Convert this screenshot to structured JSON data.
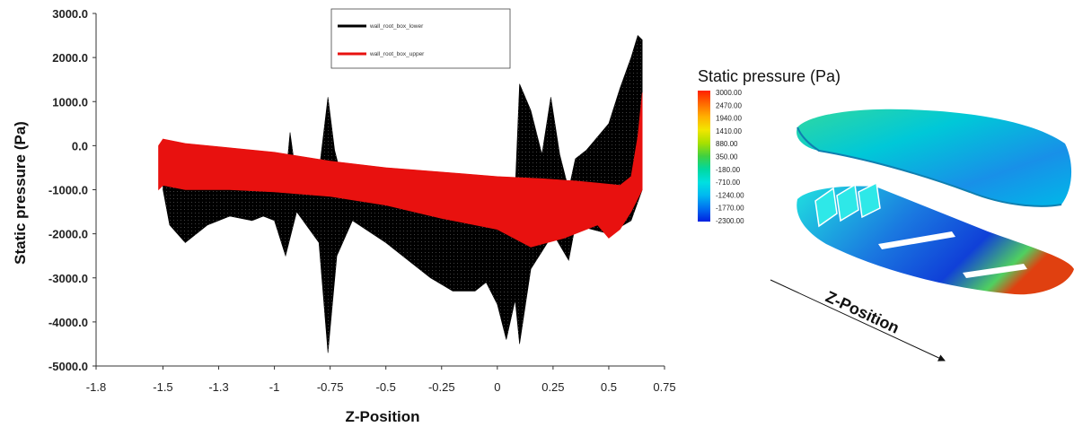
{
  "chart_data": {
    "type": "scatter",
    "xlabel": "Z-Position",
    "ylabel": "Static pressure (Pa)",
    "xlim": [
      -1.8,
      0.75
    ],
    "ylim": [
      -5000,
      3000
    ],
    "x_ticks": [
      "-1.8",
      "-1.5",
      "-1.3",
      "-1",
      "-0.75",
      "-0.5",
      "-0.25",
      "0",
      "0.25",
      "0.5",
      "0.75"
    ],
    "x_tick_values": [
      -1.8,
      -1.5,
      -1.25,
      -1.0,
      -0.75,
      -0.5,
      -0.25,
      0,
      0.25,
      0.5,
      0.75
    ],
    "y_ticks": [
      "3000.0",
      "2000.0",
      "1000.0",
      "0.0",
      "-1000.0",
      "-2000.0",
      "-3000.0",
      "-4000.0",
      "-5000.0"
    ],
    "y_tick_values": [
      3000,
      2000,
      1000,
      0,
      -1000,
      -2000,
      -3000,
      -4000,
      -5000
    ],
    "legend_position": "top-center",
    "series": [
      {
        "name": "wall_root_box_lower",
        "color": "#000000",
        "upper": [
          [
            -1.5,
            -400
          ],
          [
            -1.45,
            -500
          ],
          [
            -1.4,
            -550
          ],
          [
            -1.3,
            -600
          ],
          [
            -1.2,
            -650
          ],
          [
            -1.1,
            -700
          ],
          [
            -1.0,
            -750
          ],
          [
            -0.95,
            -800
          ],
          [
            -0.93,
            300
          ],
          [
            -0.9,
            -800
          ],
          [
            -0.8,
            -600
          ],
          [
            -0.76,
            1100
          ],
          [
            -0.73,
            -100
          ],
          [
            -0.7,
            -700
          ],
          [
            -0.6,
            -700
          ],
          [
            -0.5,
            -800
          ],
          [
            -0.4,
            -850
          ],
          [
            -0.3,
            -900
          ],
          [
            -0.2,
            -950
          ],
          [
            -0.1,
            -1000
          ],
          [
            0.0,
            -1050
          ],
          [
            0.08,
            -1000
          ],
          [
            0.1,
            1400
          ],
          [
            0.15,
            800
          ],
          [
            0.2,
            -200
          ],
          [
            0.24,
            1100
          ],
          [
            0.28,
            -200
          ],
          [
            0.32,
            -1000
          ],
          [
            0.35,
            -300
          ],
          [
            0.4,
            -100
          ],
          [
            0.5,
            500
          ],
          [
            0.55,
            1300
          ],
          [
            0.6,
            2000
          ],
          [
            0.63,
            2500
          ],
          [
            0.65,
            2400
          ]
        ],
        "lower": [
          [
            -1.5,
            -1000
          ],
          [
            -1.47,
            -1800
          ],
          [
            -1.4,
            -2200
          ],
          [
            -1.35,
            -2000
          ],
          [
            -1.3,
            -1800
          ],
          [
            -1.2,
            -1600
          ],
          [
            -1.1,
            -1700
          ],
          [
            -1.05,
            -1600
          ],
          [
            -1.0,
            -1700
          ],
          [
            -0.95,
            -2500
          ],
          [
            -0.9,
            -1500
          ],
          [
            -0.8,
            -2200
          ],
          [
            -0.76,
            -4700
          ],
          [
            -0.72,
            -2500
          ],
          [
            -0.65,
            -1700
          ],
          [
            -0.5,
            -2200
          ],
          [
            -0.4,
            -2600
          ],
          [
            -0.3,
            -3000
          ],
          [
            -0.2,
            -3300
          ],
          [
            -0.1,
            -3300
          ],
          [
            -0.05,
            -3100
          ],
          [
            0.0,
            -3600
          ],
          [
            0.04,
            -4400
          ],
          [
            0.08,
            -3500
          ],
          [
            0.1,
            -4500
          ],
          [
            0.15,
            -2800
          ],
          [
            0.2,
            -2400
          ],
          [
            0.25,
            -2000
          ],
          [
            0.32,
            -2600
          ],
          [
            0.35,
            -1800
          ],
          [
            0.5,
            -2000
          ],
          [
            0.6,
            -1700
          ],
          [
            0.65,
            -1000
          ]
        ]
      },
      {
        "name": "wall_root_box_upper",
        "color": "#e8110f",
        "upper": [
          [
            -1.52,
            0
          ],
          [
            -1.5,
            150
          ],
          [
            -1.4,
            50
          ],
          [
            -1.2,
            -50
          ],
          [
            -1.0,
            -150
          ],
          [
            -0.75,
            -350
          ],
          [
            -0.5,
            -500
          ],
          [
            -0.25,
            -600
          ],
          [
            0.0,
            -700
          ],
          [
            0.2,
            -750
          ],
          [
            0.35,
            -800
          ],
          [
            0.45,
            -850
          ],
          [
            0.55,
            -900
          ],
          [
            0.6,
            -700
          ],
          [
            0.63,
            200
          ],
          [
            0.65,
            1200
          ]
        ],
        "lower": [
          [
            -1.52,
            -1000
          ],
          [
            -1.5,
            -900
          ],
          [
            -1.4,
            -1000
          ],
          [
            -1.2,
            -1000
          ],
          [
            -1.0,
            -1050
          ],
          [
            -0.75,
            -1150
          ],
          [
            -0.5,
            -1350
          ],
          [
            -0.25,
            -1650
          ],
          [
            0.0,
            -1900
          ],
          [
            0.15,
            -2300
          ],
          [
            0.3,
            -2100
          ],
          [
            0.45,
            -1800
          ],
          [
            0.5,
            -2100
          ],
          [
            0.55,
            -1900
          ],
          [
            0.6,
            -1500
          ],
          [
            0.65,
            -1000
          ]
        ]
      }
    ]
  },
  "colorbar": {
    "title": "Static pressure (Pa)",
    "ticks": [
      "3000.00",
      "2470.00",
      "1940.00",
      "1410.00",
      "880.00",
      "350.00",
      "-180.00",
      "-710.00",
      "-1240.00",
      "-1770.00",
      "-2300.00"
    ],
    "colors": [
      "#ff2000",
      "#ff6a00",
      "#ffb000",
      "#f2e600",
      "#a8e000",
      "#40d040",
      "#00d8a0",
      "#00e0e0",
      "#00b8f0",
      "#0070f0",
      "#0020e0"
    ]
  },
  "model_label": "Z-Position"
}
